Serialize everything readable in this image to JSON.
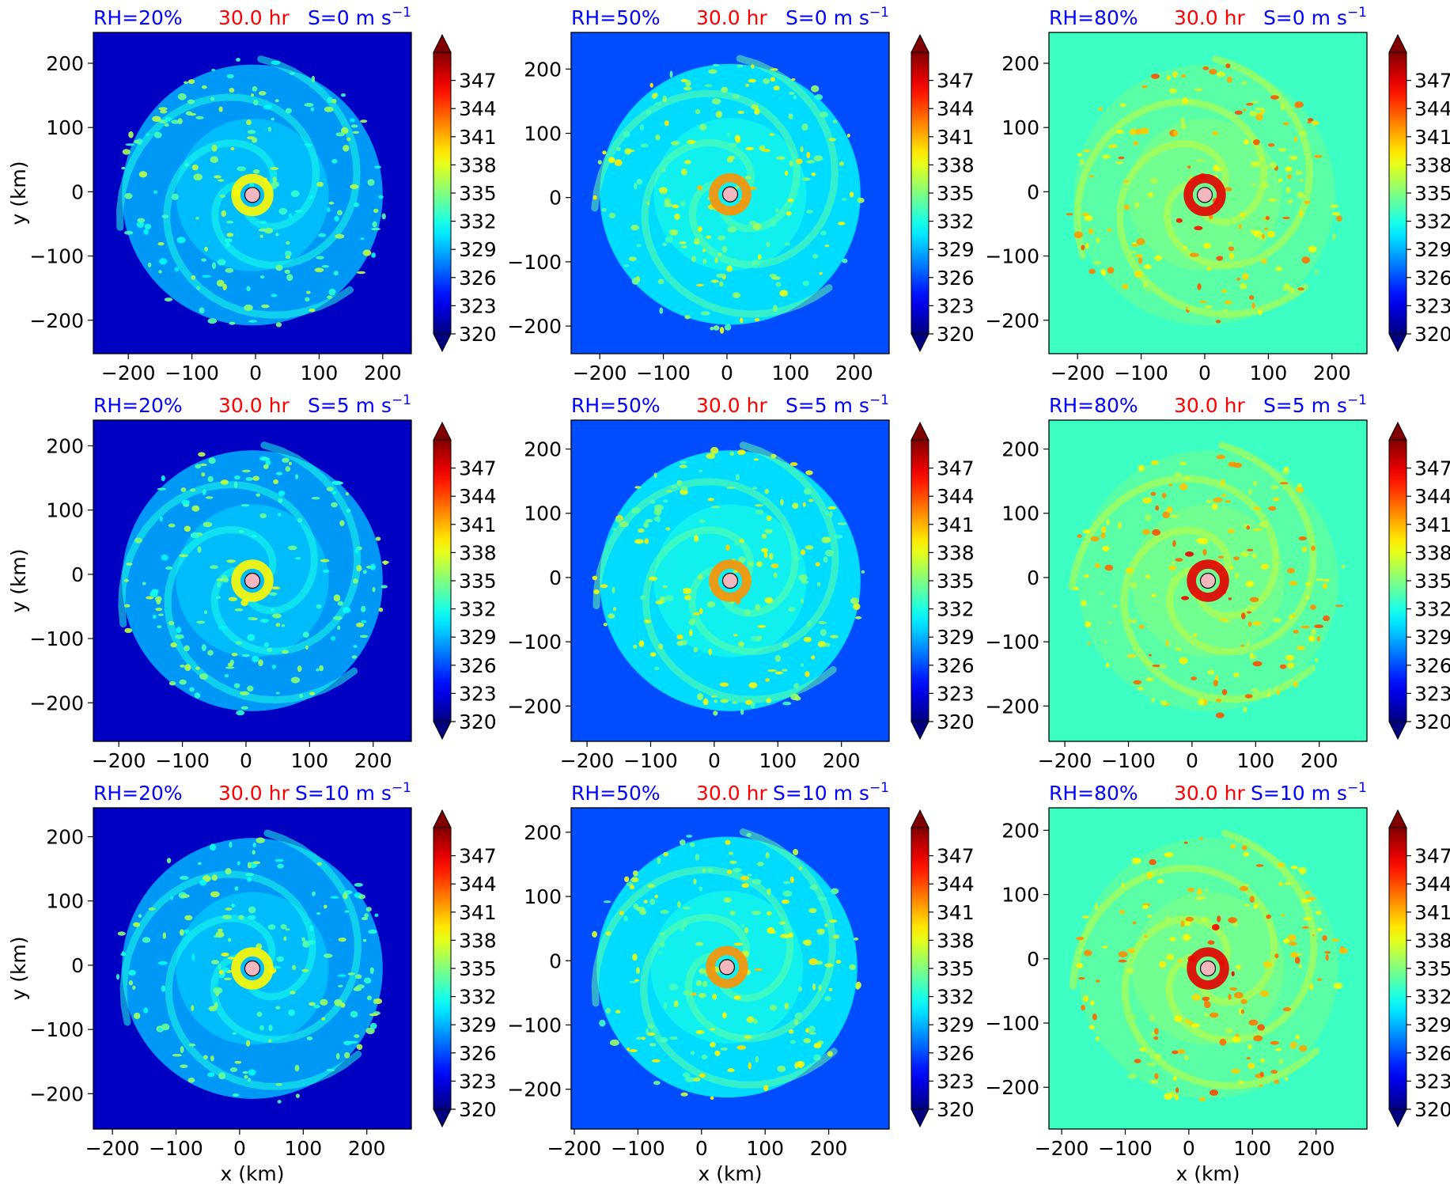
{
  "colors": {
    "rh_label": "#0000ff",
    "time_label": "#ff0000",
    "shear_label": "#0000ff",
    "center_marker": "#f4b6bf",
    "colormap": "jet"
  },
  "marker_icon": "storm-center-circle",
  "chart_data": [
    {
      "type": "heatmap",
      "panel_row": 0,
      "panel_col": 0,
      "rh_label": "RH=20%",
      "time_label": "30.0 hr",
      "shear_label": "S=0 m s",
      "shear_exp": "−1",
      "xlabel": "",
      "ylabel": "y (km)",
      "xticks": [
        -200,
        -100,
        0,
        100,
        200
      ],
      "yticks": [
        -200,
        -100,
        0,
        100,
        200
      ],
      "xlim": [
        -255,
        245
      ],
      "ylim": [
        -252,
        248
      ],
      "center": [
        -5,
        -5
      ],
      "base_level": 322,
      "band_level": 329,
      "max_level": 339,
      "colorbar": {
        "ticks": [
          320,
          323,
          326,
          329,
          332,
          335,
          338,
          341,
          344,
          347
        ],
        "vmin": 320,
        "vmax": 350,
        "extend": "both"
      }
    },
    {
      "type": "heatmap",
      "panel_row": 0,
      "panel_col": 1,
      "rh_label": "RH=50%",
      "time_label": "30.0 hr",
      "shear_label": "S=0 m s",
      "shear_exp": "−1",
      "xlabel": "",
      "ylabel": "",
      "xticks": [
        -200,
        -100,
        0,
        100,
        200
      ],
      "yticks": [
        -200,
        -100,
        0,
        100,
        200
      ],
      "xlim": [
        -245,
        255
      ],
      "ylim": [
        -243,
        257
      ],
      "center": [
        5,
        5
      ],
      "base_level": 326,
      "band_level": 331,
      "max_level": 342,
      "colorbar": {
        "ticks": [
          320,
          323,
          326,
          329,
          332,
          335,
          338,
          341,
          344,
          347
        ],
        "vmin": 320,
        "vmax": 350,
        "extend": "both"
      }
    },
    {
      "type": "heatmap",
      "panel_row": 0,
      "panel_col": 2,
      "rh_label": "RH=80%",
      "time_label": "30.0 hr",
      "shear_label": "S=0 m s",
      "shear_exp": "−1",
      "xlabel": "",
      "ylabel": "",
      "xticks": [
        -200,
        -100,
        0,
        100,
        200
      ],
      "yticks": [
        -200,
        -100,
        0,
        100,
        200
      ],
      "xlim": [
        -245,
        255
      ],
      "ylim": [
        -252,
        248
      ],
      "center": [
        0,
        -5
      ],
      "base_level": 333,
      "band_level": 334,
      "max_level": 347,
      "colorbar": {
        "ticks": [
          320,
          323,
          326,
          329,
          332,
          335,
          338,
          341,
          344,
          347
        ],
        "vmin": 320,
        "vmax": 350,
        "extend": "both"
      }
    },
    {
      "type": "heatmap",
      "panel_row": 1,
      "panel_col": 0,
      "rh_label": "RH=20%",
      "time_label": "30.0 hr",
      "shear_label": "S=5 m s",
      "shear_exp": "−1",
      "xlabel": "",
      "ylabel": "y (km)",
      "xticks": [
        -200,
        -100,
        0,
        100,
        200
      ],
      "yticks": [
        -200,
        -100,
        0,
        100,
        200
      ],
      "xlim": [
        -240,
        260
      ],
      "ylim": [
        -260,
        240
      ],
      "center": [
        10,
        -10
      ],
      "base_level": 322,
      "band_level": 329,
      "max_level": 339,
      "colorbar": {
        "ticks": [
          320,
          323,
          326,
          329,
          332,
          335,
          338,
          341,
          344,
          347
        ],
        "vmin": 320,
        "vmax": 350,
        "extend": "both"
      }
    },
    {
      "type": "heatmap",
      "panel_row": 1,
      "panel_col": 1,
      "rh_label": "RH=50%",
      "time_label": "30.0 hr",
      "shear_label": "S=5 m s",
      "shear_exp": "−1",
      "xlabel": "",
      "ylabel": "",
      "xticks": [
        -200,
        -100,
        0,
        100,
        200
      ],
      "yticks": [
        -200,
        -100,
        0,
        100,
        200
      ],
      "xlim": [
        -225,
        275
      ],
      "ylim": [
        -255,
        245
      ],
      "center": [
        25,
        -5
      ],
      "base_level": 326,
      "band_level": 331,
      "max_level": 342,
      "colorbar": {
        "ticks": [
          320,
          323,
          326,
          329,
          332,
          335,
          338,
          341,
          344,
          347
        ],
        "vmin": 320,
        "vmax": 350,
        "extend": "both"
      }
    },
    {
      "type": "heatmap",
      "panel_row": 1,
      "panel_col": 2,
      "rh_label": "RH=80%",
      "time_label": "30.0 hr",
      "shear_label": "S=5 m s",
      "shear_exp": "−1",
      "xlabel": "",
      "ylabel": "",
      "xticks": [
        -200,
        -100,
        0,
        100,
        200
      ],
      "yticks": [
        -200,
        -100,
        0,
        100,
        200
      ],
      "xlim": [
        -225,
        275
      ],
      "ylim": [
        -255,
        245
      ],
      "center": [
        25,
        -5
      ],
      "base_level": 333,
      "band_level": 334,
      "max_level": 347,
      "colorbar": {
        "ticks": [
          320,
          323,
          326,
          329,
          332,
          335,
          338,
          341,
          344,
          347
        ],
        "vmin": 320,
        "vmax": 350,
        "extend": "both"
      }
    },
    {
      "type": "heatmap",
      "panel_row": 2,
      "panel_col": 0,
      "rh_label": "RH=20%",
      "time_label": "30.0 hr",
      "shear_label": "S=10 m s",
      "shear_exp": "−1",
      "xlabel": "x (km)",
      "ylabel": "y (km)",
      "xticks": [
        -200,
        -100,
        0,
        100,
        200
      ],
      "yticks": [
        -200,
        -100,
        0,
        100,
        200
      ],
      "xlim": [
        -230,
        270
      ],
      "ylim": [
        -255,
        245
      ],
      "center": [
        20,
        -5
      ],
      "base_level": 322,
      "band_level": 329,
      "max_level": 339,
      "colorbar": {
        "ticks": [
          320,
          323,
          326,
          329,
          332,
          335,
          338,
          341,
          344,
          347
        ],
        "vmin": 320,
        "vmax": 350,
        "extend": "both"
      }
    },
    {
      "type": "heatmap",
      "panel_row": 2,
      "panel_col": 1,
      "rh_label": "RH=50%",
      "time_label": "30.0 hr",
      "shear_label": "S=10 m s",
      "shear_exp": "−1",
      "xlabel": "x (km)",
      "ylabel": "",
      "xticks": [
        -200,
        -100,
        0,
        100,
        200
      ],
      "yticks": [
        -200,
        -100,
        0,
        100,
        200
      ],
      "xlim": [
        -205,
        295
      ],
      "ylim": [
        -262,
        238
      ],
      "center": [
        40,
        -10
      ],
      "base_level": 326,
      "band_level": 331,
      "max_level": 342,
      "colorbar": {
        "ticks": [
          320,
          323,
          326,
          329,
          332,
          335,
          338,
          341,
          344,
          347
        ],
        "vmin": 320,
        "vmax": 350,
        "extend": "both"
      }
    },
    {
      "type": "heatmap",
      "panel_row": 2,
      "panel_col": 2,
      "rh_label": "RH=80%",
      "time_label": "30.0 hr",
      "shear_label": "S=10 m s",
      "shear_exp": "−1",
      "xlabel": "x (km)",
      "ylabel": "",
      "xticks": [
        -200,
        -100,
        0,
        100,
        200
      ],
      "yticks": [
        -200,
        -100,
        0,
        100,
        200
      ],
      "xlim": [
        -220,
        280
      ],
      "ylim": [
        -265,
        235
      ],
      "center": [
        30,
        -15
      ],
      "base_level": 333,
      "band_level": 334,
      "max_level": 347,
      "colorbar": {
        "ticks": [
          320,
          323,
          326,
          329,
          332,
          335,
          338,
          341,
          344,
          347
        ],
        "vmin": 320,
        "vmax": 350,
        "extend": "both"
      }
    }
  ]
}
